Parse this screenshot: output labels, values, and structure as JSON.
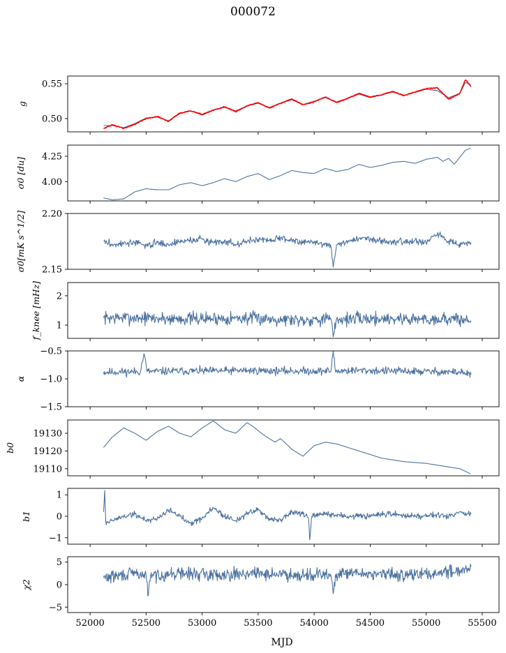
{
  "figure": {
    "title": "000072",
    "xlabel": "MJD"
  },
  "chart_data": [
    {
      "type": "line",
      "ylabel": "g",
      "xlim": [
        51800,
        55650
      ],
      "ylim": [
        0.481,
        0.561
      ],
      "yticks": [
        0.5,
        0.55
      ],
      "ytick_labels": [
        "0.50",
        "0.55"
      ],
      "series": [
        {
          "color": "#4c72a0",
          "x": [
            52120,
            52200,
            52300,
            52400,
            52500,
            52600,
            52700,
            52800,
            52900,
            53000,
            53100,
            53200,
            53300,
            53400,
            53500,
            53600,
            53700,
            53800,
            53900,
            54000,
            54100,
            54200,
            54300,
            54400,
            54500,
            54600,
            54700,
            54800,
            54900,
            55000,
            55100,
            55200,
            55300,
            55350,
            55400
          ],
          "y": [
            0.49,
            0.49,
            0.487,
            0.493,
            0.501,
            0.502,
            0.497,
            0.507,
            0.511,
            0.505,
            0.512,
            0.516,
            0.511,
            0.518,
            0.522,
            0.516,
            0.522,
            0.527,
            0.52,
            0.525,
            0.53,
            0.524,
            0.529,
            0.535,
            0.53,
            0.534,
            0.538,
            0.533,
            0.538,
            0.542,
            0.54,
            0.53,
            0.536,
            0.552,
            0.548
          ]
        },
        {
          "color": "#ff0000",
          "x": [
            52120,
            52200,
            52300,
            52400,
            52500,
            52600,
            52700,
            52800,
            52900,
            53000,
            53100,
            53200,
            53300,
            53400,
            53500,
            53600,
            53700,
            53800,
            53900,
            54000,
            54100,
            54200,
            54300,
            54400,
            54500,
            54600,
            54700,
            54800,
            54900,
            55000,
            55100,
            55200,
            55300,
            55350,
            55400
          ],
          "y": [
            0.486,
            0.491,
            0.486,
            0.492,
            0.5,
            0.503,
            0.496,
            0.508,
            0.511,
            0.506,
            0.512,
            0.517,
            0.51,
            0.518,
            0.523,
            0.515,
            0.522,
            0.528,
            0.52,
            0.524,
            0.531,
            0.523,
            0.529,
            0.536,
            0.531,
            0.534,
            0.539,
            0.533,
            0.538,
            0.543,
            0.544,
            0.528,
            0.536,
            0.556,
            0.546
          ]
        }
      ]
    },
    {
      "type": "line",
      "ylabel": "σ0 [du]",
      "xlim": [
        51800,
        55650
      ],
      "ylim": [
        3.81,
        4.36
      ],
      "yticks": [
        4.0,
        4.25
      ],
      "ytick_labels": [
        "4.00",
        "4.25"
      ],
      "series": [
        {
          "color": "#4c72a0",
          "x": [
            52120,
            52200,
            52300,
            52400,
            52500,
            52600,
            52700,
            52800,
            52900,
            53000,
            53100,
            53200,
            53300,
            53400,
            53500,
            53600,
            53700,
            53800,
            53900,
            54000,
            54100,
            54200,
            54300,
            54400,
            54500,
            54600,
            54700,
            54800,
            54900,
            55000,
            55100,
            55150,
            55200,
            55250,
            55300,
            55350,
            55400
          ],
          "y": [
            3.84,
            3.82,
            3.83,
            3.9,
            3.93,
            3.92,
            3.92,
            3.97,
            3.99,
            3.96,
            3.99,
            4.03,
            4.0,
            4.05,
            4.08,
            4.02,
            4.06,
            4.11,
            4.09,
            4.08,
            4.13,
            4.1,
            4.12,
            4.17,
            4.14,
            4.16,
            4.19,
            4.2,
            4.18,
            4.22,
            4.24,
            4.2,
            4.23,
            4.17,
            4.24,
            4.31,
            4.33
          ]
        }
      ]
    },
    {
      "type": "line",
      "ylabel": "σ0[mK s^1/2]",
      "xlim": [
        51800,
        55650
      ],
      "ylim": [
        2.15,
        2.2
      ],
      "yticks": [
        2.15,
        2.2
      ],
      "ytick_labels": [
        "2.15",
        "2.20"
      ],
      "series": [
        {
          "color": "#4c72a0",
          "noise": 0.0022,
          "seed": 3,
          "x": [
            52120,
            52200,
            52300,
            52400,
            52500,
            52600,
            52700,
            52800,
            52900,
            53000,
            53100,
            53200,
            53300,
            53400,
            53500,
            53600,
            53700,
            53800,
            53900,
            54000,
            54100,
            54150,
            54170,
            54200,
            54300,
            54400,
            54500,
            54600,
            54700,
            54800,
            54900,
            55000,
            55100,
            55200,
            55300,
            55400
          ],
          "y": [
            2.175,
            2.172,
            2.173,
            2.174,
            2.171,
            2.174,
            2.172,
            2.175,
            2.176,
            2.177,
            2.174,
            2.176,
            2.172,
            2.175,
            2.177,
            2.176,
            2.178,
            2.176,
            2.175,
            2.174,
            2.173,
            2.17,
            2.152,
            2.172,
            2.175,
            2.178,
            2.177,
            2.176,
            2.174,
            2.175,
            2.176,
            2.173,
            2.182,
            2.175,
            2.173,
            2.174
          ]
        }
      ]
    },
    {
      "type": "line",
      "ylabel": "f_knee [mHz]",
      "xlim": [
        51800,
        55650
      ],
      "ylim": [
        0.55,
        2.45
      ],
      "yticks": [
        1,
        2
      ],
      "ytick_labels": [
        "1",
        "2"
      ],
      "series": [
        {
          "color": "#4c72a0",
          "noise": 0.16,
          "seed": 7,
          "x": [
            52120,
            52400,
            52700,
            53000,
            53300,
            53600,
            53900,
            54100,
            54150,
            54170,
            54200,
            54400,
            54700,
            55000,
            55200,
            55400
          ],
          "y": [
            1.25,
            1.25,
            1.22,
            1.22,
            1.24,
            1.22,
            1.18,
            1.22,
            1.2,
            0.6,
            1.2,
            1.22,
            1.22,
            1.2,
            1.22,
            1.15
          ]
        }
      ]
    },
    {
      "type": "line",
      "ylabel": "α",
      "xlim": [
        51800,
        55650
      ],
      "ylim": [
        -1.5,
        -0.5
      ],
      "yticks": [
        -1.5,
        -1.0,
        -0.5
      ],
      "ytick_labels": [
        "−1.5",
        "−1.0",
        "−0.5"
      ],
      "series": [
        {
          "color": "#4c72a0",
          "noise": 0.05,
          "seed": 11,
          "x": [
            52120,
            52450,
            52480,
            52510,
            52800,
            53100,
            53400,
            53700,
            54000,
            54150,
            54170,
            54190,
            54400,
            54700,
            55000,
            55300,
            55400
          ],
          "y": [
            -0.88,
            -0.87,
            -0.55,
            -0.87,
            -0.86,
            -0.86,
            -0.85,
            -0.86,
            -0.86,
            -0.86,
            -0.5,
            -0.86,
            -0.85,
            -0.86,
            -0.87,
            -0.88,
            -0.92
          ]
        }
      ]
    },
    {
      "type": "line",
      "ylabel": "b0",
      "xlim": [
        51800,
        55650
      ],
      "ylim": [
        19106,
        19137.5
      ],
      "yticks": [
        19110,
        19120,
        19130
      ],
      "ytick_labels": [
        "19110",
        "19120",
        "19130"
      ],
      "series": [
        {
          "color": "#4c72a0",
          "x": [
            52120,
            52200,
            52300,
            52400,
            52500,
            52600,
            52700,
            52800,
            52900,
            53000,
            53100,
            53200,
            53300,
            53400,
            53450,
            53550,
            53600,
            53650,
            53700,
            53800,
            53900,
            54000,
            54100,
            54200,
            54400,
            54600,
            54800,
            55000,
            55200,
            55300,
            55400
          ],
          "y": [
            19122,
            19128,
            19133,
            19130,
            19126,
            19131,
            19134,
            19130,
            19128,
            19133,
            19137,
            19132,
            19130,
            19136,
            19134,
            19129,
            19127,
            19125,
            19127,
            19121,
            19117,
            19123,
            19125,
            19124,
            19120,
            19116,
            19114,
            19113,
            19111,
            19110,
            19107
          ]
        }
      ]
    },
    {
      "type": "line",
      "ylabel": "b1",
      "xlim": [
        51800,
        55650
      ],
      "ylim": [
        -1.3,
        1.3
      ],
      "yticks": [
        -1,
        0,
        1
      ],
      "ytick_labels": [
        "−1",
        "0",
        "1"
      ],
      "series": [
        {
          "color": "#4c72a0",
          "noise": 0.1,
          "seed": 19,
          "x": [
            52120,
            52130,
            52140,
            52200,
            52300,
            52400,
            52500,
            52600,
            52700,
            52800,
            52900,
            53000,
            53100,
            53200,
            53300,
            53400,
            53500,
            53600,
            53700,
            53800,
            53900,
            53950,
            53960,
            53980,
            54100,
            54300,
            54500,
            54700,
            54900,
            55100,
            55200,
            55300,
            55400
          ],
          "y": [
            0.2,
            1.2,
            -0.3,
            -0.2,
            0.0,
            0.1,
            -0.2,
            -0.1,
            0.3,
            0.0,
            -0.3,
            -0.1,
            0.4,
            0.0,
            -0.2,
            0.1,
            0.3,
            -0.1,
            -0.2,
            0.2,
            0.1,
            -0.1,
            -1.1,
            0.0,
            0.1,
            0.0,
            0.0,
            0.1,
            0.0,
            0.1,
            0.0,
            0.2,
            0.1
          ]
        }
      ]
    },
    {
      "type": "line",
      "ylabel": "χ2",
      "xlim": [
        51800,
        55650
      ],
      "ylim": [
        -6.2,
        6.2
      ],
      "yticks": [
        -5,
        0,
        5
      ],
      "ytick_labels": [
        "−5",
        "0",
        "5"
      ],
      "series": [
        {
          "color": "#4c72a0",
          "noise": 1.0,
          "seed": 29,
          "x": [
            52120,
            52400,
            52500,
            52520,
            52540,
            52800,
            53100,
            53400,
            53700,
            54000,
            54150,
            54170,
            54190,
            54400,
            54700,
            55000,
            55300,
            55400
          ],
          "y": [
            1.5,
            2.5,
            2.0,
            -2.3,
            2.0,
            2.5,
            2.2,
            2.5,
            2.3,
            2.2,
            2.0,
            -2.0,
            2.2,
            2.5,
            2.2,
            2.3,
            3.2,
            4.0
          ]
        }
      ]
    }
  ],
  "xaxis": {
    "ticks": [
      52000,
      52500,
      53000,
      53500,
      54000,
      54500,
      55000,
      55500
    ],
    "tick_labels": [
      "52000",
      "52500",
      "53000",
      "53500",
      "54000",
      "54500",
      "55000",
      "55500"
    ]
  }
}
